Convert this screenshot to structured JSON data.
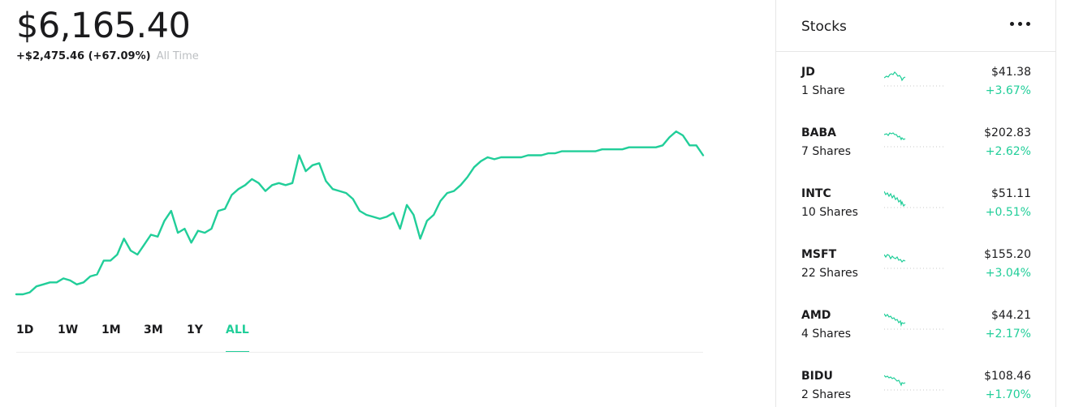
{
  "portfolio": {
    "value": "$6,165.40",
    "change": "+$2,475.46 (+67.09%)",
    "change_range": "All Time",
    "accent_color": "#21ce99",
    "ranges": [
      "1D",
      "1W",
      "1M",
      "3M",
      "1Y",
      "ALL"
    ],
    "active_range": "ALL"
  },
  "chart_data": {
    "type": "line",
    "title": "",
    "xlabel": "",
    "ylabel": "",
    "grid": false,
    "legend": "none",
    "ylim": [
      0,
      1
    ],
    "series": [
      {
        "color": "#21ce99",
        "values": [
          0.0,
          0.0,
          0.01,
          0.04,
          0.05,
          0.06,
          0.06,
          0.08,
          0.07,
          0.05,
          0.06,
          0.09,
          0.1,
          0.17,
          0.17,
          0.2,
          0.28,
          0.22,
          0.2,
          0.25,
          0.3,
          0.29,
          0.37,
          0.42,
          0.31,
          0.33,
          0.26,
          0.32,
          0.31,
          0.33,
          0.42,
          0.43,
          0.5,
          0.53,
          0.55,
          0.58,
          0.56,
          0.52,
          0.55,
          0.56,
          0.55,
          0.56,
          0.7,
          0.62,
          0.65,
          0.66,
          0.57,
          0.53,
          0.52,
          0.51,
          0.48,
          0.42,
          0.4,
          0.39,
          0.38,
          0.39,
          0.41,
          0.33,
          0.45,
          0.4,
          0.28,
          0.37,
          0.4,
          0.47,
          0.51,
          0.52,
          0.55,
          0.59,
          0.64,
          0.67,
          0.69,
          0.68,
          0.69,
          0.69,
          0.69,
          0.69,
          0.7,
          0.7,
          0.7,
          0.71,
          0.71,
          0.72,
          0.72,
          0.72,
          0.72,
          0.72,
          0.72,
          0.73,
          0.73,
          0.73,
          0.73,
          0.74,
          0.74,
          0.74,
          0.74,
          0.74,
          0.75,
          0.79,
          0.82,
          0.8,
          0.75,
          0.75,
          0.7
        ]
      }
    ]
  },
  "stocks": {
    "title": "Stocks",
    "more_icon": "more-horizontal-icon",
    "items": [
      {
        "symbol": "JD",
        "shares": "1 Share",
        "price": "$41.38",
        "change": "+3.67%"
      },
      {
        "symbol": "BABA",
        "shares": "7 Shares",
        "price": "$202.83",
        "change": "+2.62%"
      },
      {
        "symbol": "INTC",
        "shares": "10 Shares",
        "price": "$51.11",
        "change": "+0.51%"
      },
      {
        "symbol": "MSFT",
        "shares": "22 Shares",
        "price": "$155.20",
        "change": "+3.04%"
      },
      {
        "symbol": "AMD",
        "shares": "4 Shares",
        "price": "$44.21",
        "change": "+2.17%"
      },
      {
        "symbol": "BIDU",
        "shares": "2 Shares",
        "price": "$108.46",
        "change": "+1.70%"
      }
    ]
  }
}
